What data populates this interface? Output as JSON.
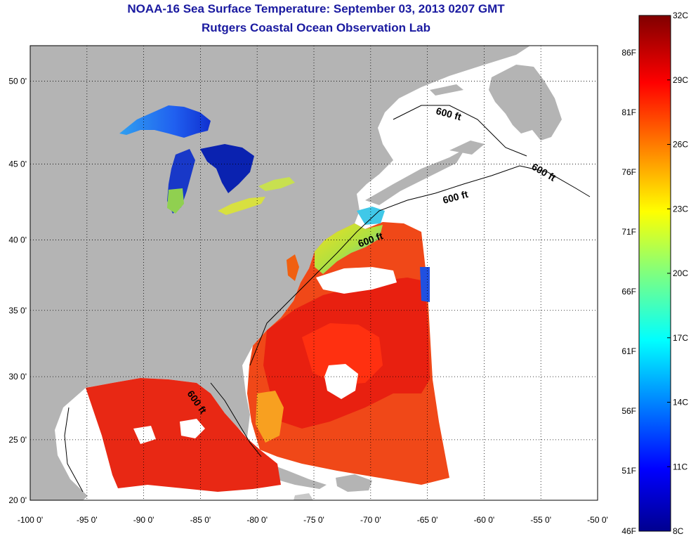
{
  "header": {
    "title": "NOAA-16 Sea Surface Temperature:  September 03, 2013 0207 GMT",
    "subtitle": "Rutgers Coastal Ocean Observation Lab"
  },
  "map": {
    "lon_range": [
      -100,
      -50
    ],
    "lat_range": [
      20,
      52
    ],
    "grid": true,
    "lon_ticks": [
      "-100 0'",
      "-95 0'",
      "-90 0'",
      "-85 0'",
      "-80 0'",
      "-75 0'",
      "-70 0'",
      "-65 0'",
      "-60 0'",
      "-55 0'",
      "-50 0'"
    ],
    "lat_ticks": [
      "20 0'",
      "25 0'",
      "30 0'",
      "35 0'",
      "40 0'",
      "45 0'",
      "50 0'"
    ],
    "contour_label": "600 ft",
    "contour_labels": [
      "600 ft",
      "600 ft",
      "600 ft",
      "600 ft",
      "600 ft"
    ],
    "colors": {
      "land": "#b4b4b4",
      "no_data": "#ffffff",
      "gulf_stream": "#f02010",
      "shelf_warm": "#f06020",
      "great_lakes": "#1030c0"
    }
  },
  "colorbar": {
    "celsius_labels": [
      "32C",
      "29C",
      "26C",
      "23C",
      "20C",
      "17C",
      "14C",
      "11C",
      "8C"
    ],
    "fahrenheit_labels": [
      "86F",
      "81F",
      "76F",
      "71F",
      "66F",
      "61F",
      "56F",
      "51F",
      "46F"
    ],
    "colormap": "jet",
    "range_c": [
      8,
      32
    ]
  }
}
